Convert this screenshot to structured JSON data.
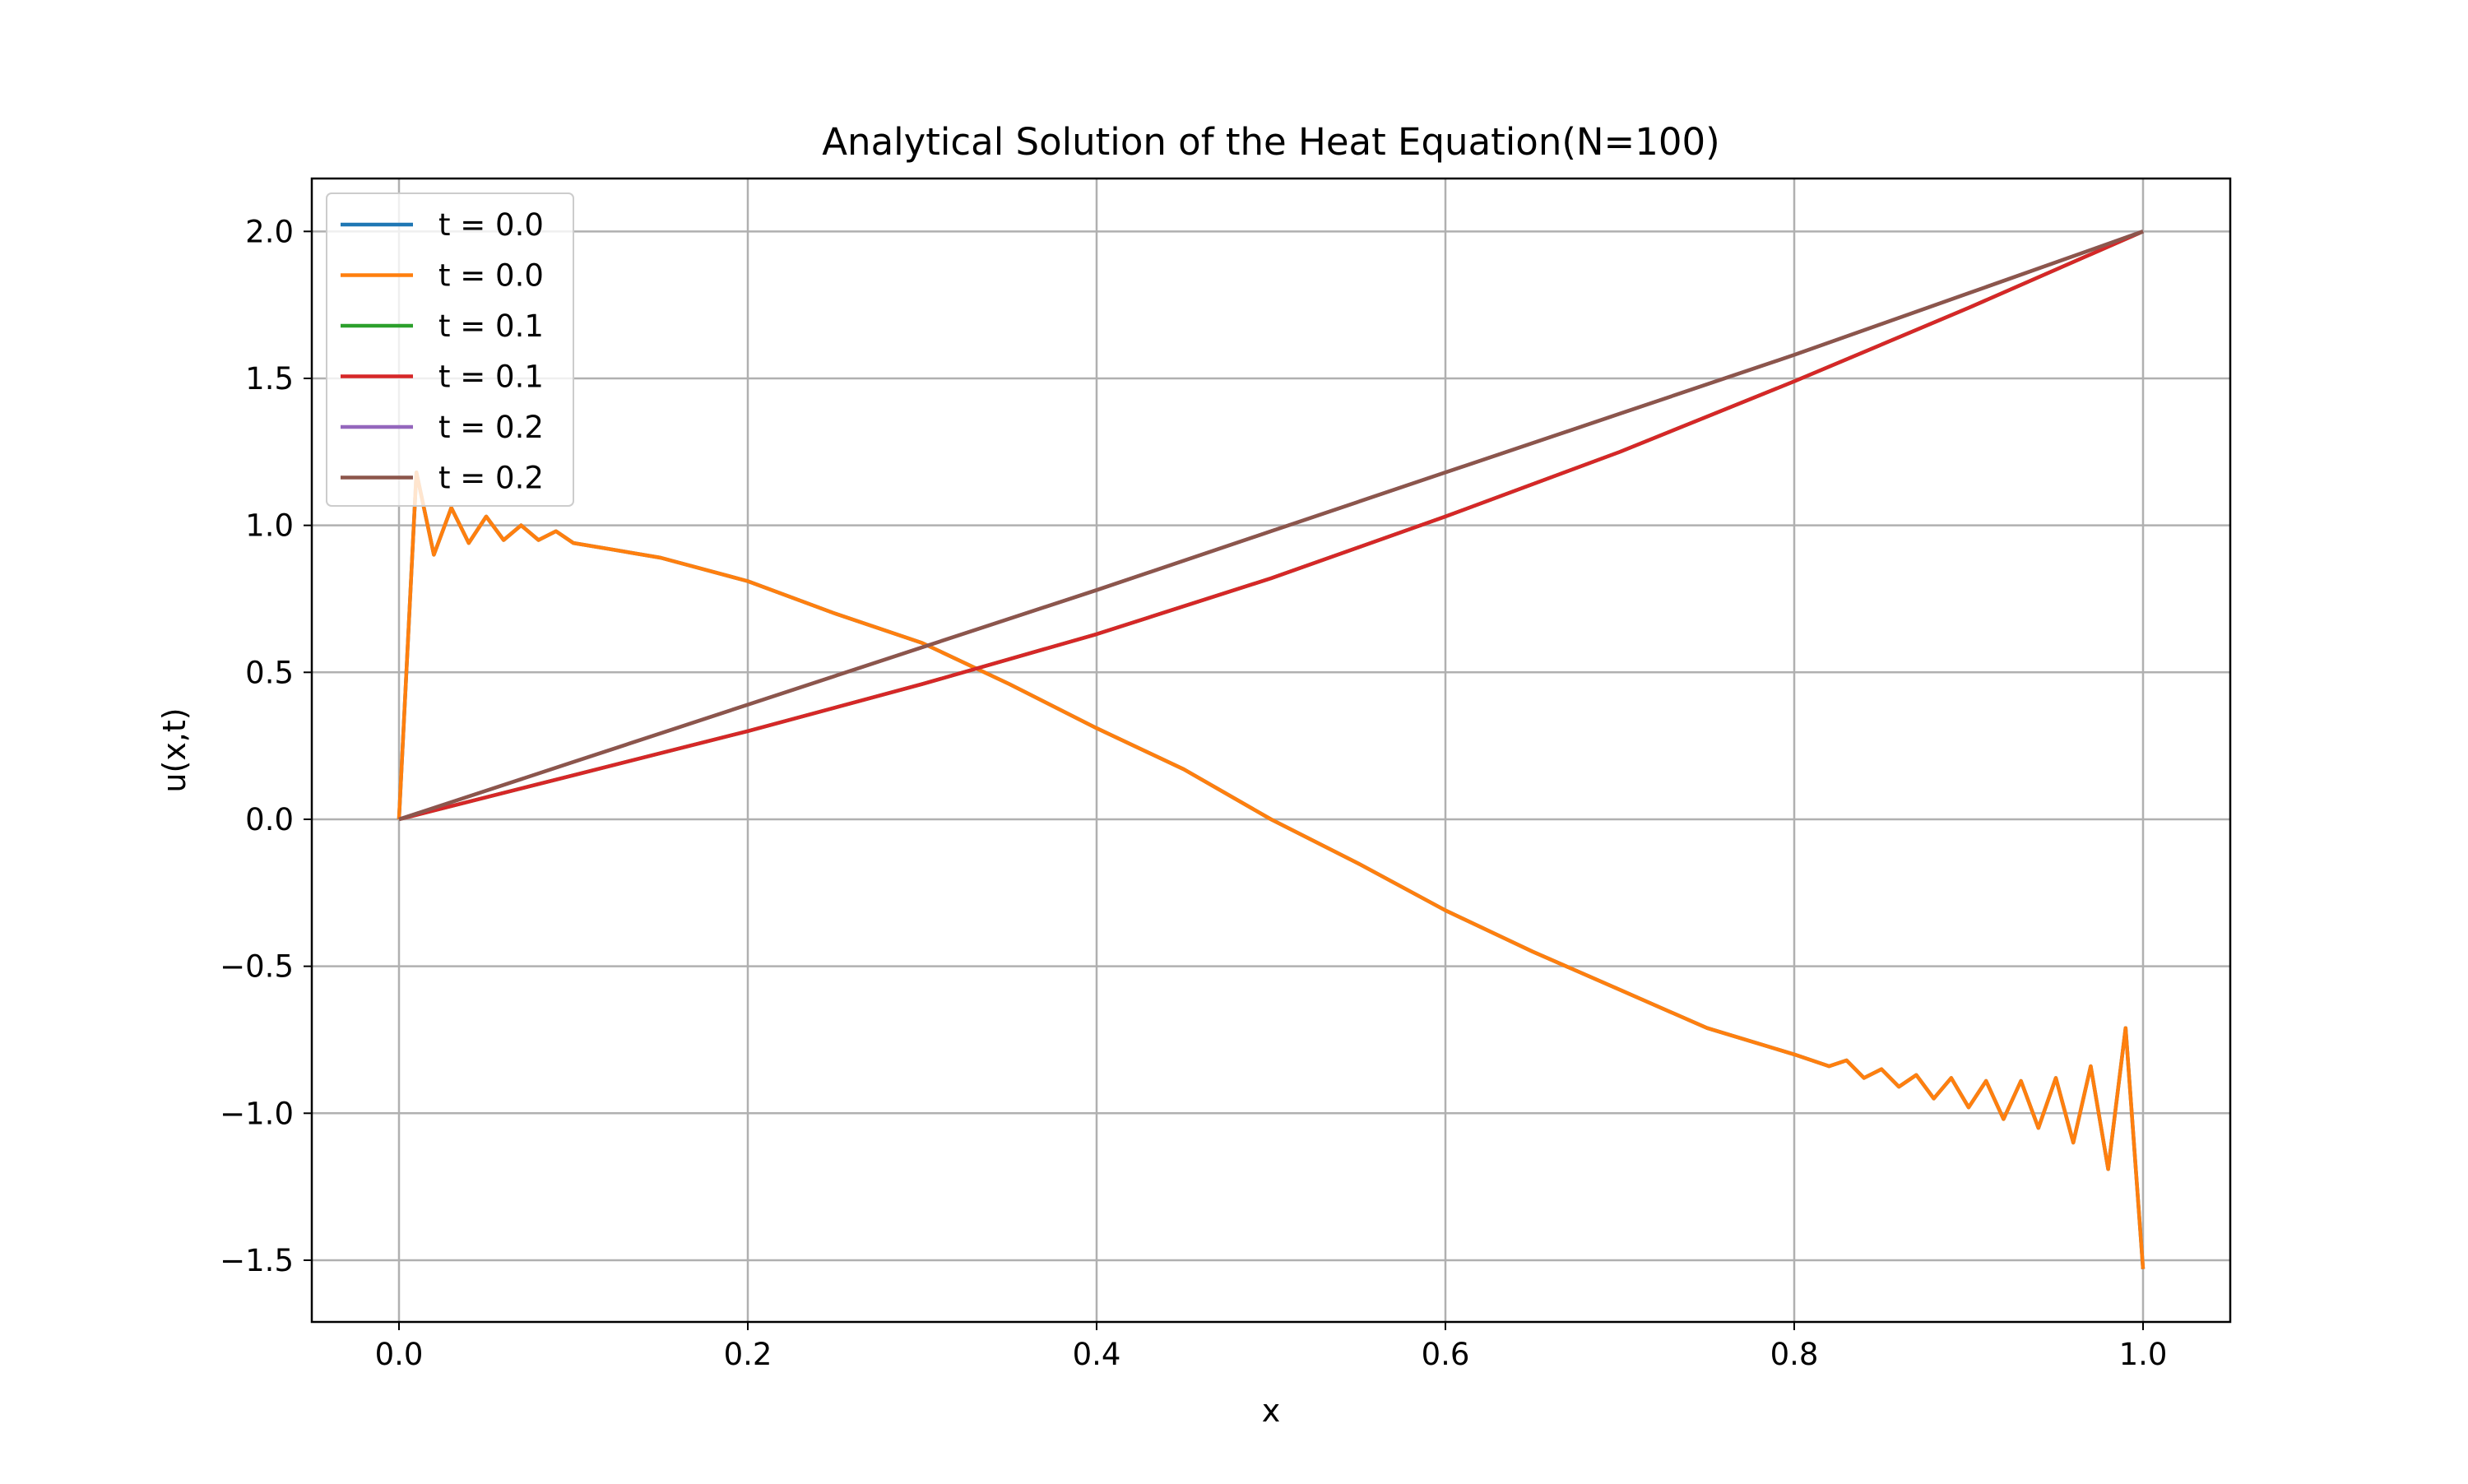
{
  "chart_data": {
    "type": "line",
    "title": "Analytical Solution of the Heat Equation(N=100)",
    "xlabel": "x",
    "ylabel": "u(x,t)",
    "xlim": [
      -0.05,
      1.05
    ],
    "ylim": [
      -1.71,
      2.18
    ],
    "xticks": [
      0.0,
      0.2,
      0.4,
      0.6,
      0.8,
      1.0
    ],
    "xtick_labels": [
      "0.0",
      "0.2",
      "0.4",
      "0.6",
      "0.8",
      "1.0"
    ],
    "yticks": [
      -1.5,
      -1.0,
      -0.5,
      0.0,
      0.5,
      1.0,
      1.5,
      2.0
    ],
    "ytick_labels": [
      "−1.5",
      "−1.0",
      "−0.5",
      "0.0",
      "0.5",
      "1.0",
      "1.5",
      "2.0"
    ],
    "grid": true,
    "legend_position": "upper-left",
    "series": [
      {
        "name": "t = 0.0",
        "color": "#1f77b4",
        "x": [
          0,
          0.01,
          0.02,
          0.03,
          0.04,
          0.05,
          0.06,
          0.07,
          0.08,
          0.09,
          0.1,
          0.12,
          0.15,
          0.2,
          0.25,
          0.3,
          0.35,
          0.4,
          0.45,
          0.5,
          0.55,
          0.6,
          0.65,
          0.7,
          0.75,
          0.8,
          0.82,
          0.83,
          0.84,
          0.85,
          0.86,
          0.87,
          0.88,
          0.89,
          0.9,
          0.91,
          0.92,
          0.93,
          0.94,
          0.95,
          0.96,
          0.97,
          0.98,
          0.99,
          1.0
        ],
        "y": [
          0,
          1.18,
          0.9,
          1.06,
          0.94,
          1.03,
          0.95,
          1.0,
          0.95,
          0.98,
          0.94,
          0.92,
          0.89,
          0.81,
          0.7,
          0.6,
          0.46,
          0.31,
          0.17,
          0.0,
          -0.15,
          -0.31,
          -0.45,
          -0.58,
          -0.71,
          -0.8,
          -0.84,
          -0.82,
          -0.88,
          -0.85,
          -0.91,
          -0.87,
          -0.95,
          -0.88,
          -0.98,
          -0.89,
          -1.02,
          -0.89,
          -1.05,
          -0.88,
          -1.1,
          -0.84,
          -1.19,
          -0.71,
          -1.53
        ]
      },
      {
        "name": "t = 0.0",
        "color": "#ff7f0e",
        "x": [
          0,
          0.01,
          0.02,
          0.03,
          0.04,
          0.05,
          0.06,
          0.07,
          0.08,
          0.09,
          0.1,
          0.12,
          0.15,
          0.2,
          0.25,
          0.3,
          0.35,
          0.4,
          0.45,
          0.5,
          0.55,
          0.6,
          0.65,
          0.7,
          0.75,
          0.8,
          0.82,
          0.83,
          0.84,
          0.85,
          0.86,
          0.87,
          0.88,
          0.89,
          0.9,
          0.91,
          0.92,
          0.93,
          0.94,
          0.95,
          0.96,
          0.97,
          0.98,
          0.99,
          1.0
        ],
        "y": [
          0,
          1.18,
          0.9,
          1.06,
          0.94,
          1.03,
          0.95,
          1.0,
          0.95,
          0.98,
          0.94,
          0.92,
          0.89,
          0.81,
          0.7,
          0.6,
          0.46,
          0.31,
          0.17,
          0.0,
          -0.15,
          -0.31,
          -0.45,
          -0.58,
          -0.71,
          -0.8,
          -0.84,
          -0.82,
          -0.88,
          -0.85,
          -0.91,
          -0.87,
          -0.95,
          -0.88,
          -0.98,
          -0.89,
          -1.02,
          -0.89,
          -1.05,
          -0.88,
          -1.1,
          -0.84,
          -1.19,
          -0.71,
          -1.53
        ]
      },
      {
        "name": "t = 0.1",
        "color": "#2ca02c",
        "x": [
          0,
          0.1,
          0.2,
          0.3,
          0.4,
          0.5,
          0.6,
          0.7,
          0.8,
          0.9,
          1.0
        ],
        "y": [
          0,
          0.15,
          0.3,
          0.46,
          0.63,
          0.82,
          1.03,
          1.25,
          1.49,
          1.74,
          2.0
        ]
      },
      {
        "name": "t = 0.1",
        "color": "#d62728",
        "x": [
          0,
          0.1,
          0.2,
          0.3,
          0.4,
          0.5,
          0.6,
          0.7,
          0.8,
          0.9,
          1.0
        ],
        "y": [
          0,
          0.15,
          0.3,
          0.46,
          0.63,
          0.82,
          1.03,
          1.25,
          1.49,
          1.74,
          2.0
        ]
      },
      {
        "name": "t = 0.2",
        "color": "#9467bd",
        "x": [
          0,
          0.1,
          0.2,
          0.3,
          0.4,
          0.5,
          0.6,
          0.7,
          0.8,
          0.9,
          1.0
        ],
        "y": [
          0,
          0.195,
          0.39,
          0.585,
          0.78,
          0.98,
          1.18,
          1.38,
          1.58,
          1.79,
          2.0
        ]
      },
      {
        "name": "t = 0.2",
        "color": "#8c564b",
        "x": [
          0,
          0.1,
          0.2,
          0.3,
          0.4,
          0.5,
          0.6,
          0.7,
          0.8,
          0.9,
          1.0
        ],
        "y": [
          0,
          0.195,
          0.39,
          0.585,
          0.78,
          0.98,
          1.18,
          1.38,
          1.58,
          1.79,
          2.0
        ]
      }
    ]
  }
}
